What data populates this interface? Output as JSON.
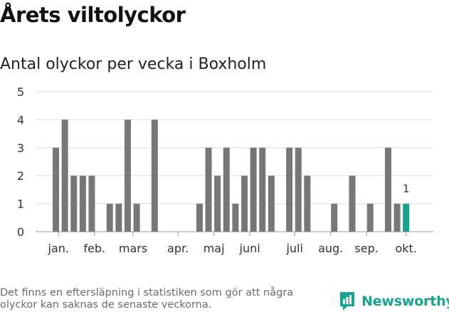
{
  "title": "Årets viltolyckor",
  "subtitle": "Antal olyckor per vecka i Boxholm",
  "footer_note": "Det finns en eftersläpning i statistiken som gör att några olyckor kan saknas de senaste veckorna.",
  "brand": {
    "name": "Newsworthy",
    "color": "#17a38e"
  },
  "chart_data": {
    "type": "bar",
    "x_unit": "week",
    "weeks": [
      1,
      2,
      3,
      4,
      5,
      6,
      7,
      8,
      9,
      10,
      11,
      12,
      13,
      14,
      15,
      16,
      17,
      18,
      19,
      20,
      21,
      22,
      23,
      24,
      25,
      26,
      27,
      28,
      29,
      30,
      31,
      32,
      33,
      34,
      35,
      36,
      37,
      38,
      39,
      40
    ],
    "values": [
      3,
      4,
      2,
      2,
      2,
      0,
      1,
      1,
      4,
      1,
      0,
      4,
      0,
      0,
      0,
      0,
      1,
      3,
      2,
      3,
      1,
      2,
      3,
      3,
      2,
      0,
      3,
      3,
      2,
      0,
      0,
      1,
      0,
      2,
      0,
      1,
      0,
      3,
      1,
      1
    ],
    "highlight_index": 39,
    "highlight_label": "1",
    "ylim": [
      0,
      5
    ],
    "yticks": [
      "0",
      "1",
      "2",
      "3",
      "4",
      "5"
    ],
    "xtick_labels": [
      {
        "label": "jan.",
        "week": 1.3
      },
      {
        "label": "feb.",
        "week": 5.3
      },
      {
        "label": "mars",
        "week": 9.6
      },
      {
        "label": "apr.",
        "week": 14.6
      },
      {
        "label": "maj",
        "week": 18.6
      },
      {
        "label": "juni",
        "week": 22.6
      },
      {
        "label": "juli",
        "week": 27.6
      },
      {
        "label": "aug.",
        "week": 31.6
      },
      {
        "label": "sep.",
        "week": 35.6
      },
      {
        "label": "okt.",
        "week": 40.0
      }
    ],
    "grid": true,
    "colors": {
      "bar": "#777777",
      "highlight": "#17a38e",
      "grid": "#dddddd"
    }
  }
}
